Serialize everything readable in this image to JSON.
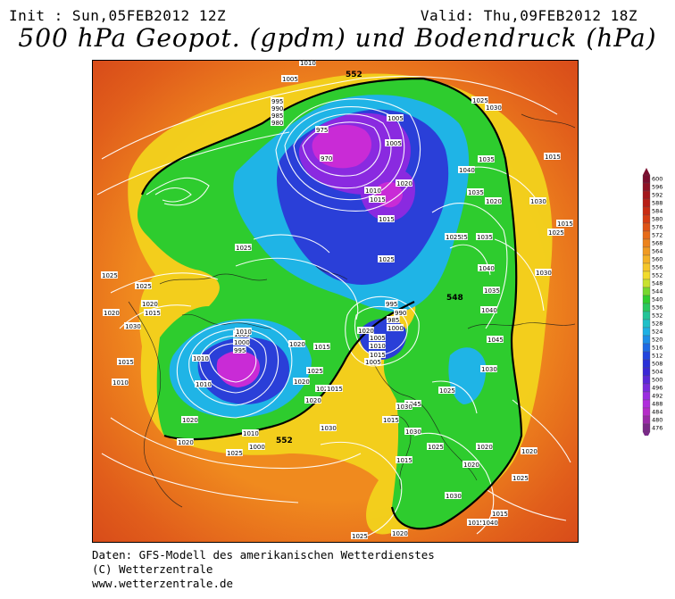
{
  "header": {
    "init": "Init : Sun,05FEB2012 12Z",
    "valid": "Valid: Thu,09FEB2012 18Z",
    "title": "500 hPa Geopot. (gpdm) und Bodendruck (hPa)"
  },
  "map": {
    "contours_gpdm": [
      "552",
      "552",
      "552",
      "548"
    ],
    "isobar_labels": [
      "1010",
      "1005",
      "1025",
      "1030",
      "995",
      "990",
      "985",
      "980",
      "975",
      "970",
      "1005",
      "1005",
      "1020",
      "1010",
      "1015",
      "1025",
      "1015",
      "1025",
      "1040",
      "1035",
      "1035",
      "1025",
      "1030",
      "1035",
      "1040",
      "1030",
      "1020",
      "1025",
      "1015",
      "1015",
      "1025",
      "995",
      "990",
      "985",
      "1000",
      "1005",
      "1010",
      "1015",
      "1020",
      "1020",
      "1030",
      "1020",
      "1025",
      "1030",
      "1020",
      "1025",
      "1025",
      "1020",
      "1015",
      "1010",
      "1010",
      "1005",
      "1000",
      "995",
      "1010",
      "1005",
      "1010",
      "1015",
      "1025",
      "1020",
      "1020",
      "1020",
      "1015",
      "1015",
      "1010",
      "1000",
      "1030",
      "1025",
      "1035",
      "1045",
      "1040",
      "1045",
      "1030",
      "1030",
      "1015",
      "1025",
      "1020",
      "1020",
      "1020",
      "1015",
      "1030",
      "1025",
      "1020",
      "1015",
      "1025",
      "1040",
      "1015",
      "1020"
    ],
    "colors": {
      "ocean_warm": "#d9471a",
      "orange": "#f08a1e",
      "yellow": "#f2d21c",
      "green": "#2ecc2e",
      "cyan": "#1fb4e6",
      "blue": "#2a3fd8",
      "violet": "#8a2ae0",
      "magenta": "#c92bd6"
    }
  },
  "colorbar": {
    "ticks": [
      "600",
      "596",
      "592",
      "588",
      "584",
      "580",
      "576",
      "572",
      "568",
      "564",
      "560",
      "556",
      "552",
      "548",
      "544",
      "540",
      "536",
      "532",
      "528",
      "524",
      "520",
      "516",
      "512",
      "508",
      "504",
      "500",
      "496",
      "492",
      "488",
      "484",
      "480",
      "476"
    ],
    "colors": [
      "#7a0d2e",
      "#8e1126",
      "#a3171d",
      "#b81e16",
      "#c92b12",
      "#d63c13",
      "#df5316",
      "#e66b19",
      "#ec831d",
      "#f09a22",
      "#f3b126",
      "#f4c62a",
      "#f1db2c",
      "#c8e12e",
      "#77d72e",
      "#2fcd2f",
      "#29c85e",
      "#23c497",
      "#1fc0c8",
      "#1db0e4",
      "#1d8ee7",
      "#1e6ae4",
      "#2145de",
      "#2a30d8",
      "#3a27d6",
      "#5a28d8",
      "#7a2bdc",
      "#9a2de0",
      "#b02edc",
      "#b52cc8",
      "#9a2aa8",
      "#7a2a88"
    ]
  },
  "footer": {
    "line1": "Daten: GFS-Modell des amerikanischen Wetterdienstes",
    "line2": "(C) Wetterzentrale",
    "line3": "www.wetterzentrale.de"
  }
}
